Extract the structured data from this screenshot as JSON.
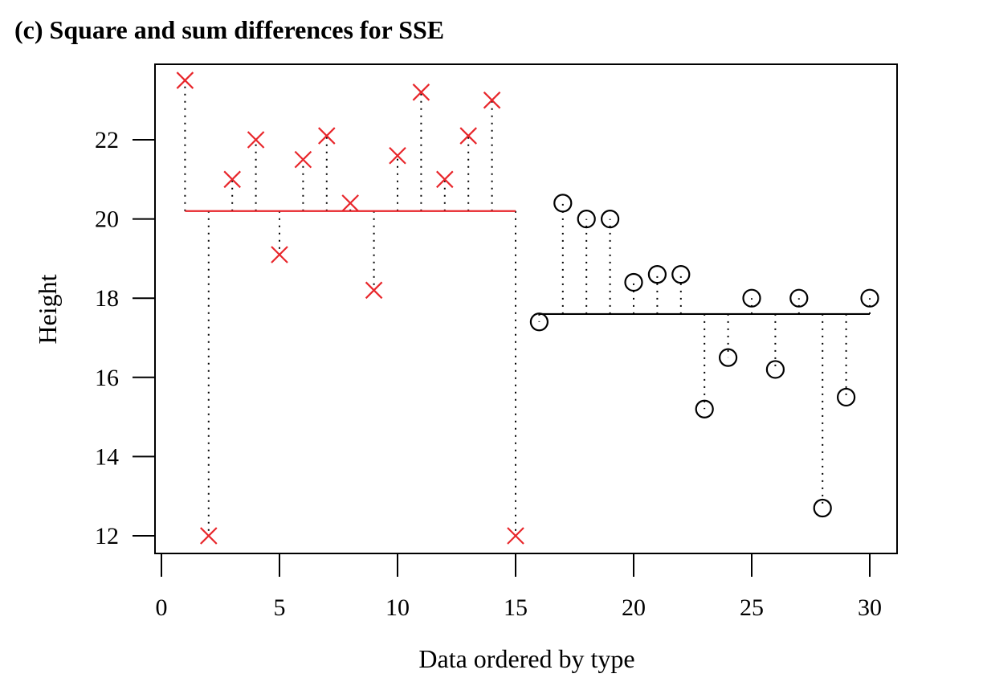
{
  "chart_data": {
    "type": "scatter",
    "title": "(c) Square and sum differences for SSE",
    "xlabel": "Data ordered by type",
    "ylabel": "Height",
    "xlim": [
      0,
      30
    ],
    "ylim": [
      12,
      23.5
    ],
    "x_ticks": [
      0,
      5,
      10,
      15,
      20,
      25,
      30
    ],
    "y_ticks": [
      12,
      14,
      16,
      18,
      20,
      22
    ],
    "grid": false,
    "series": [
      {
        "marker": "cross",
        "color": "#e8262b",
        "mean": 20.2,
        "x": [
          1,
          2,
          3,
          4,
          5,
          6,
          7,
          8,
          9,
          10,
          11,
          12,
          13,
          14,
          15
        ],
        "y": [
          23.5,
          12.0,
          21.0,
          22.0,
          19.1,
          21.5,
          22.1,
          20.4,
          18.2,
          21.6,
          23.2,
          21.0,
          22.1,
          23.0,
          12.0
        ]
      },
      {
        "marker": "circle",
        "color": "#000000",
        "mean": 17.6,
        "x": [
          16,
          17,
          18,
          19,
          20,
          21,
          22,
          23,
          24,
          25,
          26,
          27,
          28,
          29,
          30
        ],
        "y": [
          17.4,
          20.4,
          20.0,
          20.0,
          18.4,
          18.6,
          18.6,
          15.2,
          16.5,
          18.0,
          16.2,
          18.0,
          12.7,
          15.5,
          18.0
        ]
      }
    ]
  }
}
